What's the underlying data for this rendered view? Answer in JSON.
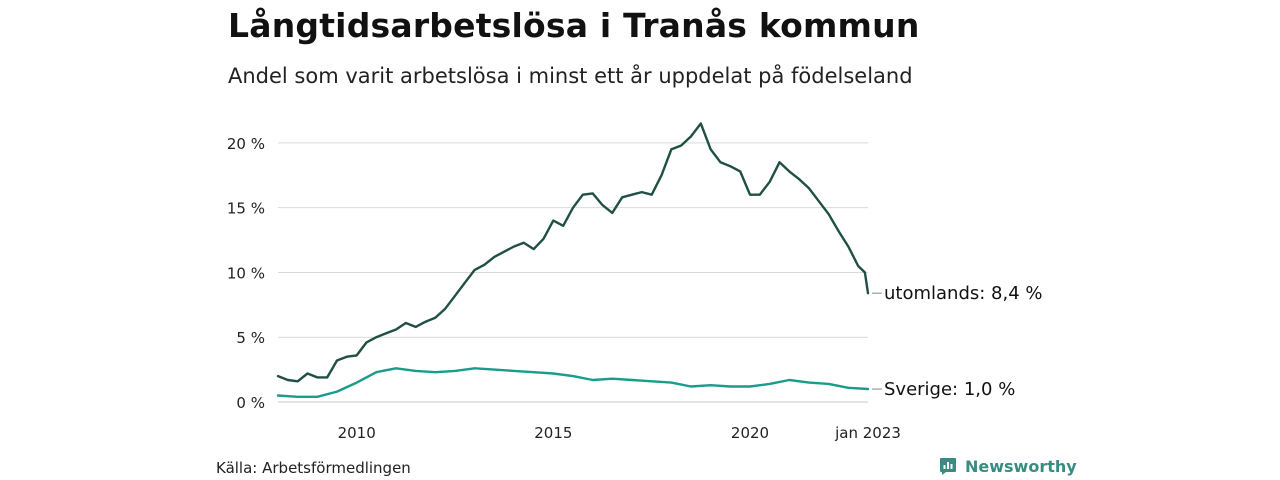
{
  "header": {
    "title": "Långtidsarbetslösa i Tranås kommun",
    "subtitle": "Andel som varit arbetslösa i minst ett år uppdelat på födelseland"
  },
  "footer": {
    "source": "Källa: Arbetsförmedlingen",
    "brand": "Newsworthy"
  },
  "colors": {
    "utomlands": "#1f4f45",
    "sverige": "#1a9c8a",
    "grid": "#d9d9d9",
    "brand": "#3a8c82"
  },
  "chart_data": {
    "type": "line",
    "x_unit": "year (decimal, monthly data)",
    "y_unit": "%",
    "ylim": [
      0,
      22
    ],
    "xlim": [
      2008.0,
      2023.0
    ],
    "y_ticks": [
      0,
      5,
      10,
      15,
      20
    ],
    "y_tick_labels": [
      "0 %",
      "5 %",
      "10 %",
      "15 %",
      "20 %"
    ],
    "x_ticks": [
      2010,
      2015,
      2020,
      2023
    ],
    "x_tick_labels": [
      "2010",
      "2015",
      "2020",
      "jan 2023"
    ],
    "grid": "horizontal",
    "legend": "end-of-line labels",
    "series": [
      {
        "name": "utomlands",
        "end_label": "utomlands: 8,4 %",
        "color_key": "utomlands",
        "points": [
          [
            2008.0,
            2.0
          ],
          [
            2008.25,
            1.7
          ],
          [
            2008.5,
            1.6
          ],
          [
            2008.75,
            2.2
          ],
          [
            2009.0,
            1.9
          ],
          [
            2009.25,
            1.9
          ],
          [
            2009.5,
            3.2
          ],
          [
            2009.75,
            3.5
          ],
          [
            2010.0,
            3.6
          ],
          [
            2010.25,
            4.6
          ],
          [
            2010.5,
            5.0
          ],
          [
            2010.75,
            5.3
          ],
          [
            2011.0,
            5.6
          ],
          [
            2011.25,
            6.1
          ],
          [
            2011.5,
            5.8
          ],
          [
            2011.75,
            6.2
          ],
          [
            2012.0,
            6.5
          ],
          [
            2012.25,
            7.2
          ],
          [
            2012.5,
            8.2
          ],
          [
            2012.75,
            9.2
          ],
          [
            2013.0,
            10.2
          ],
          [
            2013.25,
            10.6
          ],
          [
            2013.5,
            11.2
          ],
          [
            2013.75,
            11.6
          ],
          [
            2014.0,
            12.0
          ],
          [
            2014.25,
            12.3
          ],
          [
            2014.5,
            11.8
          ],
          [
            2014.75,
            12.6
          ],
          [
            2015.0,
            14.0
          ],
          [
            2015.25,
            13.6
          ],
          [
            2015.5,
            15.0
          ],
          [
            2015.75,
            16.0
          ],
          [
            2016.0,
            16.1
          ],
          [
            2016.25,
            15.2
          ],
          [
            2016.5,
            14.6
          ],
          [
            2016.75,
            15.8
          ],
          [
            2017.0,
            16.0
          ],
          [
            2017.25,
            16.2
          ],
          [
            2017.5,
            16.0
          ],
          [
            2017.75,
            17.5
          ],
          [
            2018.0,
            19.5
          ],
          [
            2018.25,
            19.8
          ],
          [
            2018.5,
            20.5
          ],
          [
            2018.75,
            21.5
          ],
          [
            2019.0,
            19.5
          ],
          [
            2019.25,
            18.5
          ],
          [
            2019.5,
            18.2
          ],
          [
            2019.75,
            17.8
          ],
          [
            2020.0,
            16.0
          ],
          [
            2020.25,
            16.0
          ],
          [
            2020.5,
            17.0
          ],
          [
            2020.75,
            18.5
          ],
          [
            2021.0,
            17.8
          ],
          [
            2021.25,
            17.2
          ],
          [
            2021.5,
            16.5
          ],
          [
            2021.75,
            15.5
          ],
          [
            2022.0,
            14.5
          ],
          [
            2022.25,
            13.2
          ],
          [
            2022.5,
            12.0
          ],
          [
            2022.75,
            10.5
          ],
          [
            2022.92,
            10.0
          ],
          [
            2023.0,
            8.4
          ]
        ]
      },
      {
        "name": "Sverige",
        "end_label": "Sverige: 1,0 %",
        "color_key": "sverige",
        "points": [
          [
            2008.0,
            0.5
          ],
          [
            2008.5,
            0.4
          ],
          [
            2009.0,
            0.4
          ],
          [
            2009.5,
            0.8
          ],
          [
            2010.0,
            1.5
          ],
          [
            2010.5,
            2.3
          ],
          [
            2011.0,
            2.6
          ],
          [
            2011.5,
            2.4
          ],
          [
            2012.0,
            2.3
          ],
          [
            2012.5,
            2.4
          ],
          [
            2013.0,
            2.6
          ],
          [
            2013.5,
            2.5
          ],
          [
            2014.0,
            2.4
          ],
          [
            2014.5,
            2.3
          ],
          [
            2015.0,
            2.2
          ],
          [
            2015.5,
            2.0
          ],
          [
            2016.0,
            1.7
          ],
          [
            2016.5,
            1.8
          ],
          [
            2017.0,
            1.7
          ],
          [
            2017.5,
            1.6
          ],
          [
            2018.0,
            1.5
          ],
          [
            2018.5,
            1.2
          ],
          [
            2019.0,
            1.3
          ],
          [
            2019.5,
            1.2
          ],
          [
            2020.0,
            1.2
          ],
          [
            2020.5,
            1.4
          ],
          [
            2021.0,
            1.7
          ],
          [
            2021.5,
            1.5
          ],
          [
            2022.0,
            1.4
          ],
          [
            2022.5,
            1.1
          ],
          [
            2023.0,
            1.0
          ]
        ]
      }
    ]
  }
}
